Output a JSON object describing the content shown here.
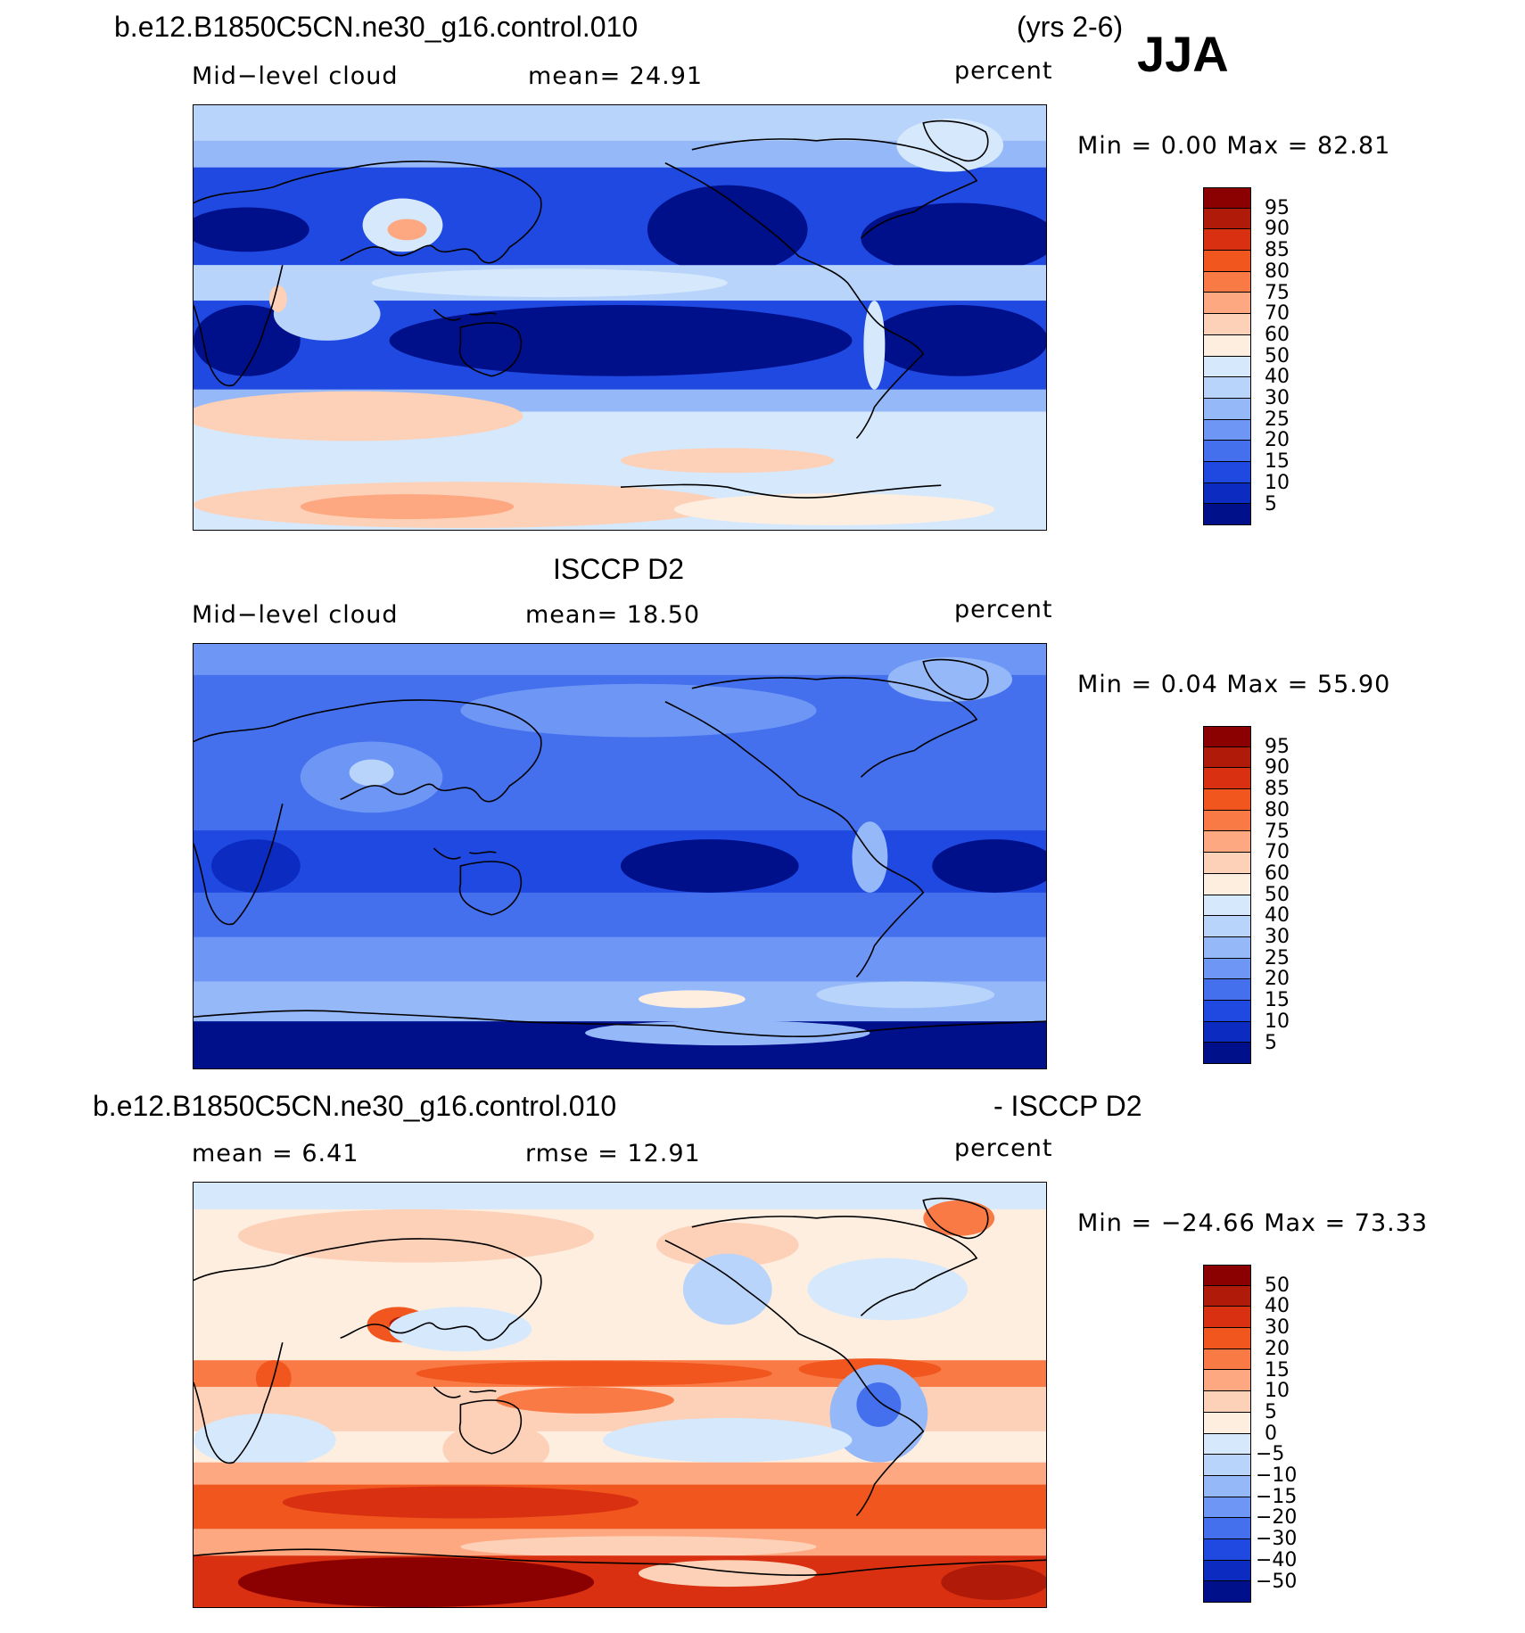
{
  "header": {
    "case_name": "b.e12.B1850C5CN.ne30_g16.control.010",
    "years": "(yrs 2-6)",
    "season": "JJA"
  },
  "panels": [
    {
      "title": "",
      "left_label": "Mid−level cloud",
      "center_label": "mean=   24.91",
      "units": "percent",
      "minmax": "Min =     0.00 Max =   82.81",
      "colorbar_labels": [
        "95",
        "90",
        "85",
        "80",
        "75",
        "70",
        "60",
        "50",
        "40",
        "30",
        "25",
        "20",
        "15",
        "10",
        "5"
      ],
      "colorbar_colors": [
        "#8b0000",
        "#b01a08",
        "#d83010",
        "#f0561e",
        "#fa7a46",
        "#fda880",
        "#fdd0b8",
        "#fdeee0",
        "#d6e8fb",
        "#b8d4fb",
        "#95b8f8",
        "#6e96f4",
        "#4470ee",
        "#1f49e0",
        "#0c2bc0",
        "#000f8a"
      ]
    },
    {
      "title": "ISCCP D2",
      "left_label": "Mid−level cloud",
      "center_label": "mean=   18.50",
      "units": "percent",
      "minmax": "Min =     0.04 Max =   55.90",
      "colorbar_labels": [
        "95",
        "90",
        "85",
        "80",
        "75",
        "70",
        "60",
        "50",
        "40",
        "30",
        "25",
        "20",
        "15",
        "10",
        "5"
      ],
      "colorbar_colors": [
        "#8b0000",
        "#b01a08",
        "#d83010",
        "#f0561e",
        "#fa7a46",
        "#fda880",
        "#fdd0b8",
        "#fdeee0",
        "#d6e8fb",
        "#b8d4fb",
        "#95b8f8",
        "#6e96f4",
        "#4470ee",
        "#1f49e0",
        "#0c2bc0",
        "#000f8a"
      ]
    },
    {
      "title_left": "b.e12.B1850C5CN.ne30_g16.control.010",
      "title_right": "- ISCCP D2",
      "left_label": "mean =     6.41",
      "center_label": "rmse =    12.91",
      "units": "percent",
      "minmax": "Min = −24.66 Max =   73.33",
      "colorbar_labels": [
        "50",
        "40",
        "30",
        "20",
        "15",
        "10",
        "5",
        "0",
        "−5",
        "−10",
        "−15",
        "−20",
        "−30",
        "−40",
        "−50"
      ],
      "colorbar_colors": [
        "#8b0000",
        "#b01a08",
        "#d83010",
        "#f0561e",
        "#fa7a46",
        "#fda880",
        "#fdd0b8",
        "#fdeee0",
        "#d6e8fb",
        "#b8d4fb",
        "#95b8f8",
        "#6e96f4",
        "#4470ee",
        "#1f49e0",
        "#0c2bc0",
        "#000f8a"
      ]
    }
  ]
}
